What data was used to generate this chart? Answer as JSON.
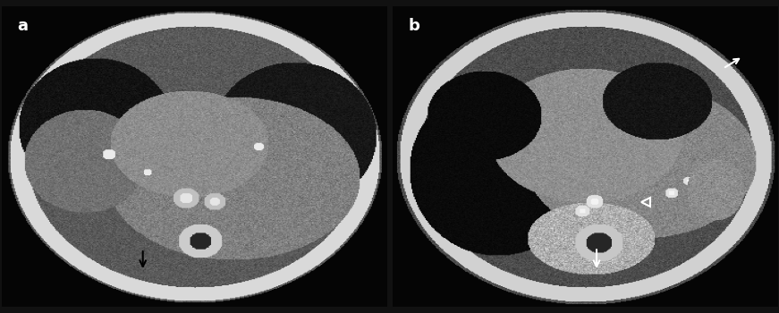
{
  "fig_width": 8.71,
  "fig_height": 3.5,
  "dpi": 100,
  "background_color": "#111111",
  "panel_a_label": "a",
  "panel_b_label": "b",
  "label_color": "white",
  "label_fontsize": 13,
  "label_fontweight": "bold"
}
